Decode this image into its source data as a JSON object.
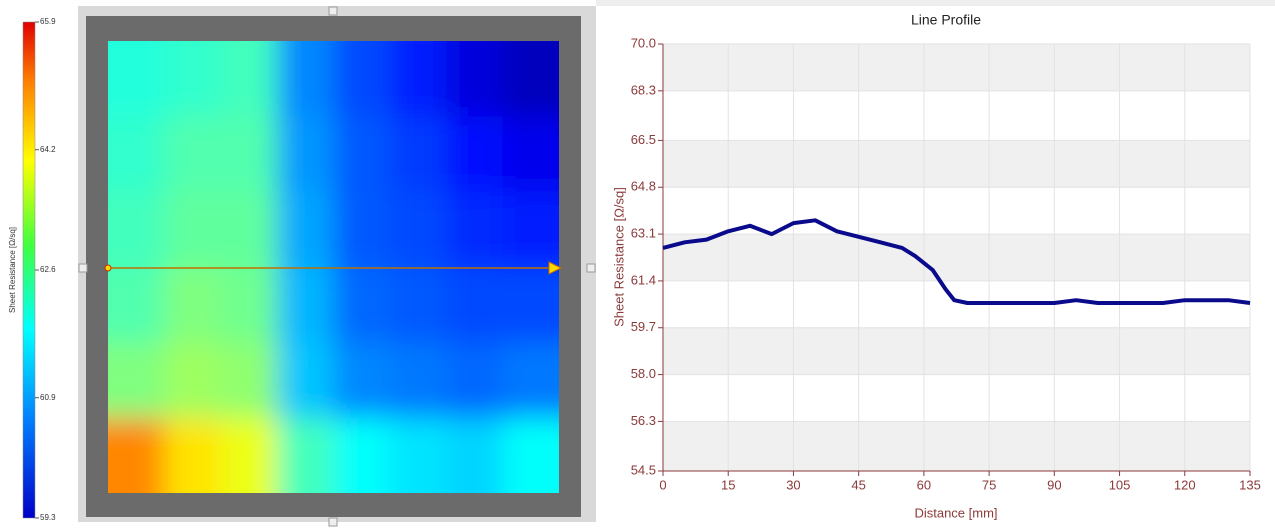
{
  "chart_data": [
    {
      "type": "heatmap",
      "colorbar_label": "Sheet Resistance [Ω/sq]",
      "zlim": [
        59.3,
        65.9
      ],
      "zticks": [
        59.3,
        60.9,
        62.6,
        64.2,
        65.9
      ],
      "values": [
        [
          62.0,
          62.1,
          62.2,
          61.0,
          60.6,
          60.3,
          59.9,
          59.7
        ],
        [
          62.1,
          62.3,
          62.3,
          61.1,
          60.7,
          60.5,
          60.2,
          60.0
        ],
        [
          62.2,
          62.4,
          62.4,
          61.2,
          60.7,
          60.6,
          60.4,
          60.3
        ],
        [
          62.3,
          62.6,
          62.5,
          61.3,
          60.8,
          60.7,
          60.6,
          60.6
        ],
        [
          62.6,
          62.8,
          62.7,
          61.4,
          61.0,
          60.9,
          60.8,
          60.9
        ],
        [
          64.2,
          63.6,
          63.3,
          62.2,
          61.8,
          61.6,
          61.5,
          61.8
        ]
      ]
    },
    {
      "type": "line",
      "title": "Line Profile",
      "x_label": "Distance [mm]",
      "y_label": "Sheet Resistance [Ω/sq]",
      "x": [
        0,
        5,
        10,
        15,
        20,
        25,
        30,
        35,
        40,
        45,
        50,
        55,
        58,
        62,
        65,
        67,
        70,
        75,
        80,
        85,
        90,
        95,
        100,
        105,
        110,
        115,
        120,
        125,
        130,
        135
      ],
      "values": [
        62.6,
        62.8,
        62.9,
        63.2,
        63.4,
        63.1,
        63.5,
        63.6,
        63.2,
        63.0,
        62.8,
        62.6,
        62.3,
        61.8,
        61.1,
        60.7,
        60.6,
        60.6,
        60.6,
        60.6,
        60.6,
        60.7,
        60.6,
        60.6,
        60.6,
        60.6,
        60.7,
        60.7,
        60.7,
        60.6
      ],
      "color": "#0a0a8c",
      "xlim": [
        0,
        135
      ],
      "xticks": [
        0,
        15,
        30,
        45,
        60,
        75,
        90,
        105,
        120,
        135
      ],
      "ylim": [
        54.5,
        70
      ],
      "yticks": [
        54.5,
        56.3,
        {
          "value": 58,
          "label": "58.0"
        },
        59.7,
        61.4,
        63.1,
        64.8,
        66.5,
        68.3,
        {
          "value": 70,
          "label": "70.0"
        }
      ],
      "grid": true
    }
  ]
}
